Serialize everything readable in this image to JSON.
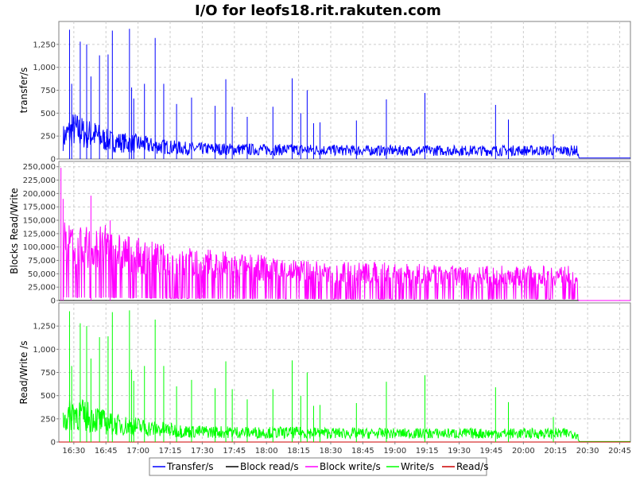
{
  "chart_data": {
    "type": "line",
    "title": "I/O for leofs18.rit.rakuten.com",
    "x_ticks": [
      "16:30",
      "16:45",
      "17:00",
      "17:15",
      "17:30",
      "17:45",
      "18:00",
      "18:15",
      "18:30",
      "18:45",
      "19:00",
      "19:15",
      "19:30",
      "19:45",
      "20:00",
      "20:15",
      "20:30",
      "20:45"
    ],
    "x_range": [
      "16:23",
      "20:50"
    ],
    "grid": true,
    "legend_placement": "bottom",
    "legend": [
      {
        "name": "Transfer/s",
        "color": "#0000ff"
      },
      {
        "name": "Block read/s",
        "color": "#000000"
      },
      {
        "name": "Block write/s",
        "color": "#ff00ff"
      },
      {
        "name": "Write/s",
        "color": "#00ff00"
      },
      {
        "name": "Read/s",
        "color": "#cc0000"
      }
    ],
    "panels": [
      {
        "ylabel": "transfer/s",
        "ylim": [
          0,
          1500
        ],
        "y_ticks": [
          0,
          250,
          500,
          750,
          1000,
          1250
        ],
        "y_tick_labels": [
          "0",
          "250",
          "500",
          "750",
          "1,000",
          "1,250"
        ],
        "series": [
          {
            "name": "Transfer/s",
            "color": "#0000ff",
            "x": [
              "16:25",
              "16:30",
              "16:35",
              "16:40",
              "16:45",
              "16:50",
              "16:55",
              "17:00",
              "17:05",
              "17:10",
              "17:15",
              "17:20",
              "17:25",
              "17:30",
              "17:45",
              "18:00",
              "18:15",
              "18:30",
              "18:45",
              "19:00",
              "19:15",
              "19:30",
              "19:45",
              "20:00",
              "20:15",
              "20:25",
              "20:26",
              "20:50"
            ],
            "y": [
              250,
              350,
              300,
              280,
              220,
              200,
              190,
              180,
              160,
              150,
              140,
              130,
              120,
              120,
              115,
              110,
              110,
              105,
              100,
              100,
              100,
              100,
              100,
              100,
              100,
              100,
              10,
              10
            ]
          }
        ],
        "spikes": [
          {
            "series": "Transfer/s",
            "x": [
              "16:28",
              "16:29",
              "16:33",
              "16:36",
              "16:38",
              "16:42",
              "16:46",
              "16:48",
              "16:56",
              "16:57",
              "16:58",
              "17:03",
              "17:08",
              "17:12",
              "17:18",
              "17:25",
              "17:36",
              "17:41",
              "17:44",
              "17:51",
              "18:03",
              "18:12",
              "18:16",
              "18:19",
              "18:22",
              "18:25",
              "18:42",
              "18:56",
              "19:14",
              "19:47",
              "19:53",
              "20:14"
            ],
            "y": [
              1410,
              820,
              1280,
              1250,
              900,
              1130,
              1140,
              1400,
              1420,
              780,
              660,
              820,
              1320,
              820,
              600,
              670,
              580,
              870,
              570,
              460,
              570,
              880,
              500,
              750,
              390,
              400,
              420,
              650,
              720,
              590,
              430,
              270
            ]
          }
        ]
      },
      {
        "ylabel": "Blocks Read/Write",
        "ylim": [
          0,
          260000
        ],
        "y_ticks": [
          0,
          25000,
          50000,
          75000,
          100000,
          125000,
          150000,
          175000,
          200000,
          225000,
          250000
        ],
        "y_tick_labels": [
          "0",
          "25,000",
          "50,000",
          "75,000",
          "100,000",
          "125,000",
          "150,000",
          "175,000",
          "200,000",
          "225,000",
          "250,000"
        ],
        "series": [
          {
            "name": "Block read/s",
            "color": "#000000",
            "x": [
              "16:23",
              "20:26",
              "20:50"
            ],
            "y": [
              0,
              0,
              0
            ]
          },
          {
            "name": "Block write/s",
            "color": "#ff00ff",
            "x": [
              "16:25",
              "16:30",
              "16:40",
              "16:45",
              "16:50",
              "17:00",
              "17:15",
              "17:30",
              "17:45",
              "18:00",
              "18:15",
              "18:30",
              "18:45",
              "19:00",
              "19:15",
              "19:30",
              "19:45",
              "20:00",
              "20:15",
              "20:25",
              "20:26",
              "20:50"
            ],
            "y": [
              120000,
              110000,
              105000,
              110000,
              100000,
              90000,
              80000,
              75000,
              70000,
              65000,
              60000,
              57000,
              55000,
              55000,
              52000,
              50000,
              50000,
              50000,
              50000,
              50000,
              0,
              0
            ]
          }
        ],
        "spikes": [
          {
            "series": "Block write/s",
            "x": [
              "16:24",
              "16:25",
              "16:38",
              "16:47"
            ],
            "y": [
              248000,
              190000,
              196000,
              150000
            ]
          }
        ]
      },
      {
        "ylabel": "Read/Write /s",
        "ylim": [
          0,
          1500
        ],
        "y_ticks": [
          0,
          250,
          500,
          750,
          1000,
          1250
        ],
        "y_tick_labels": [
          "0",
          "250",
          "500",
          "750",
          "1,000",
          "1,250"
        ],
        "series": [
          {
            "name": "Write/s",
            "color": "#00ff00",
            "x": [
              "16:25",
              "16:30",
              "16:35",
              "16:40",
              "16:45",
              "16:50",
              "16:55",
              "17:00",
              "17:05",
              "17:10",
              "17:15",
              "17:20",
              "17:25",
              "17:30",
              "17:45",
              "18:00",
              "18:15",
              "18:30",
              "18:45",
              "19:00",
              "19:15",
              "19:30",
              "19:45",
              "20:00",
              "20:15",
              "20:25",
              "20:26",
              "20:50"
            ],
            "y": [
              250,
              350,
              300,
              280,
              220,
              200,
              190,
              180,
              160,
              150,
              140,
              130,
              120,
              120,
              115,
              110,
              110,
              105,
              100,
              100,
              100,
              100,
              100,
              100,
              100,
              100,
              5,
              5
            ]
          },
          {
            "name": "Read/s",
            "color": "#cc0000",
            "x": [
              "16:23",
              "20:50"
            ],
            "y": [
              0,
              0
            ]
          }
        ],
        "spikes": [
          {
            "series": "Write/s",
            "x": [
              "16:28",
              "16:29",
              "16:33",
              "16:36",
              "16:38",
              "16:42",
              "16:46",
              "16:48",
              "16:56",
              "16:57",
              "16:58",
              "17:03",
              "17:08",
              "17:12",
              "17:18",
              "17:25",
              "17:36",
              "17:41",
              "17:44",
              "17:51",
              "18:03",
              "18:12",
              "18:16",
              "18:19",
              "18:22",
              "18:25",
              "18:42",
              "18:56",
              "19:14",
              "19:47",
              "19:53",
              "20:14"
            ],
            "y": [
              1410,
              820,
              1280,
              1250,
              900,
              1130,
              1140,
              1400,
              1420,
              780,
              660,
              820,
              1320,
              820,
              600,
              670,
              580,
              870,
              570,
              460,
              570,
              880,
              500,
              750,
              390,
              400,
              420,
              650,
              720,
              590,
              430,
              270
            ]
          }
        ]
      }
    ]
  }
}
